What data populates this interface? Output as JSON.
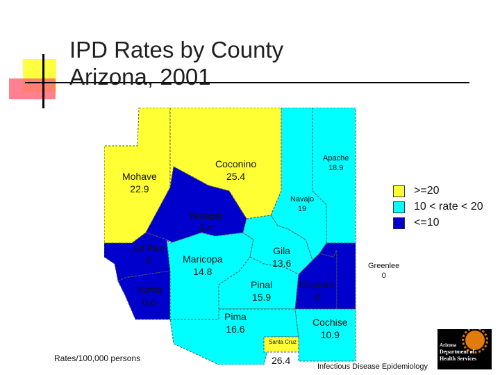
{
  "title": {
    "line1": "IPD Rates by County",
    "line2": "Arizona, 2001"
  },
  "colors": {
    "high": "#ffff33",
    "mid": "#00ffff",
    "low": "#0000cc",
    "border": "#555555"
  },
  "legend": [
    {
      "label": ">=20",
      "color": "#ffff33"
    },
    {
      "label": "10 < rate < 20",
      "color": "#00ffff"
    },
    {
      "label": "<=10",
      "color": "#0000cc"
    }
  ],
  "counties": [
    {
      "name": "Mohave",
      "rate": "22.9"
    },
    {
      "name": "Coconino",
      "rate": "25.4"
    },
    {
      "name": "Apache",
      "rate": "18.9"
    },
    {
      "name": "Navajo",
      "rate": "19"
    },
    {
      "name": "Yavapai",
      "rate": "3.4"
    },
    {
      "name": "La Paz",
      "rate": "0"
    },
    {
      "name": "Maricopa",
      "rate": "14.8"
    },
    {
      "name": "Gila",
      "rate": "13.6"
    },
    {
      "name": "Yuma",
      "rate": "0.6"
    },
    {
      "name": "Pinal",
      "rate": "15.9"
    },
    {
      "name": "Graham",
      "rate": "0"
    },
    {
      "name": "Greenlee",
      "rate": "0"
    },
    {
      "name": "Pima",
      "rate": "16.6"
    },
    {
      "name": "Cochise",
      "rate": "10.9"
    },
    {
      "name": "Santa Cruz",
      "rate": "26.4"
    }
  ],
  "footnote": "Rates/100,000 persons",
  "footer": "Infectious Disease Epidemiology",
  "logo": {
    "line1": "Arizona",
    "line2": "Department of",
    "line3": "Health Services"
  }
}
